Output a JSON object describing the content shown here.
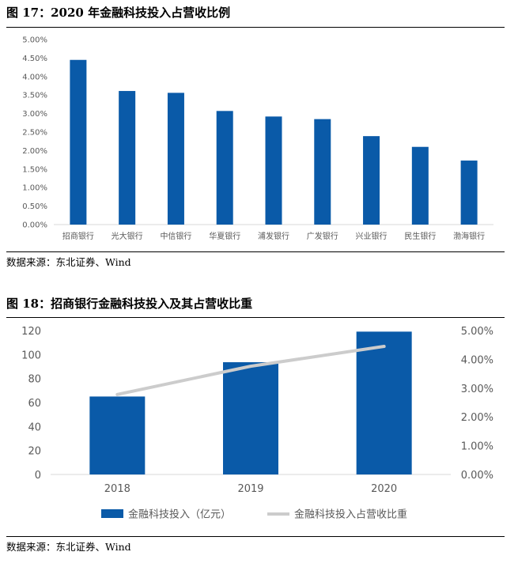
{
  "figure1": {
    "title": "图 17：2020 年金融科技投入占营收比例",
    "source": "数据来源：东北证券、Wind"
  },
  "figure2": {
    "title": "图 18：招商银行金融科技投入及其占营收比重",
    "source": "数据来源：东北证券、Wind"
  },
  "colors": {
    "bar": "#0a5aa8",
    "line": "#cccccc",
    "axis": "#d9d9d9"
  },
  "chart_data": [
    {
      "type": "bar",
      "title": "",
      "xlabel": "",
      "ylabel": "",
      "ylim": [
        0,
        5.0
      ],
      "y_tick_labels": [
        "0.00%",
        "0.50%",
        "1.00%",
        "1.50%",
        "2.00%",
        "2.50%",
        "3.00%",
        "3.50%",
        "4.00%",
        "4.50%",
        "5.00%"
      ],
      "grid": false,
      "categories": [
        "招商银行",
        "光大银行",
        "中信银行",
        "华夏银行",
        "浦发银行",
        "广发银行",
        "兴业银行",
        "民生银行",
        "渤海银行"
      ],
      "values": [
        4.45,
        3.61,
        3.56,
        3.07,
        2.92,
        2.85,
        2.39,
        2.1,
        1.73
      ]
    },
    {
      "type": "bar",
      "title": "",
      "categories": [
        "2018",
        "2019",
        "2020"
      ],
      "grid": false,
      "legend": "bottom",
      "y_left": {
        "ylim": [
          0,
          120
        ],
        "tick_labels": [
          "0",
          "20",
          "40",
          "60",
          "80",
          "100",
          "120"
        ]
      },
      "y_right": {
        "ylim": [
          0,
          5.0
        ],
        "tick_labels": [
          "0.00%",
          "1.00%",
          "2.00%",
          "3.00%",
          "4.00%",
          "5.00%"
        ]
      },
      "series": [
        {
          "name": "金融科技投入（亿元）",
          "type": "bar",
          "axis": "left",
          "values": [
            65.0,
            93.6,
            119.1
          ]
        },
        {
          "name": "金融科技投入占营收比重",
          "type": "line",
          "axis": "right",
          "values": [
            2.78,
            3.76,
            4.45
          ]
        }
      ]
    }
  ]
}
